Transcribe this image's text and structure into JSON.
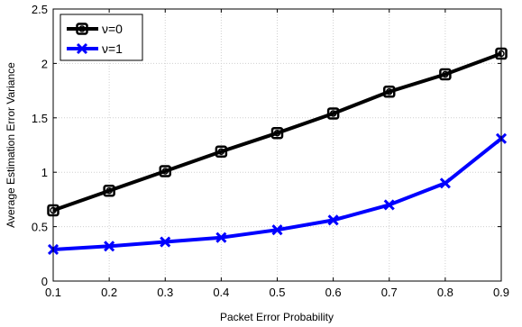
{
  "chart_data": {
    "type": "line",
    "xlabel": "Packet Error Probability",
    "ylabel": "Average Estimation Error Variance",
    "x": [
      0.1,
      0.2,
      0.3,
      0.4,
      0.5,
      0.6,
      0.7,
      0.8,
      0.9
    ],
    "xlim": [
      0.1,
      0.9
    ],
    "ylim": [
      0,
      2.5
    ],
    "xticks": [
      "0.1",
      "0.2",
      "0.3",
      "0.4",
      "0.5",
      "0.6",
      "0.7",
      "0.8",
      "0.9"
    ],
    "yticks": [
      "0",
      "0.5",
      "1",
      "1.5",
      "2",
      "2.5"
    ],
    "grid": true,
    "legend_position": "top-left",
    "series": [
      {
        "name": "ν=0",
        "color": "#000000",
        "marker": "square-circle",
        "values": [
          0.65,
          0.83,
          1.01,
          1.19,
          1.36,
          1.54,
          1.74,
          1.9,
          2.09
        ]
      },
      {
        "name": "ν=1",
        "color": "#0000ff",
        "marker": "x",
        "values": [
          0.29,
          0.32,
          0.36,
          0.4,
          0.47,
          0.56,
          0.7,
          0.9,
          1.31
        ]
      }
    ]
  }
}
